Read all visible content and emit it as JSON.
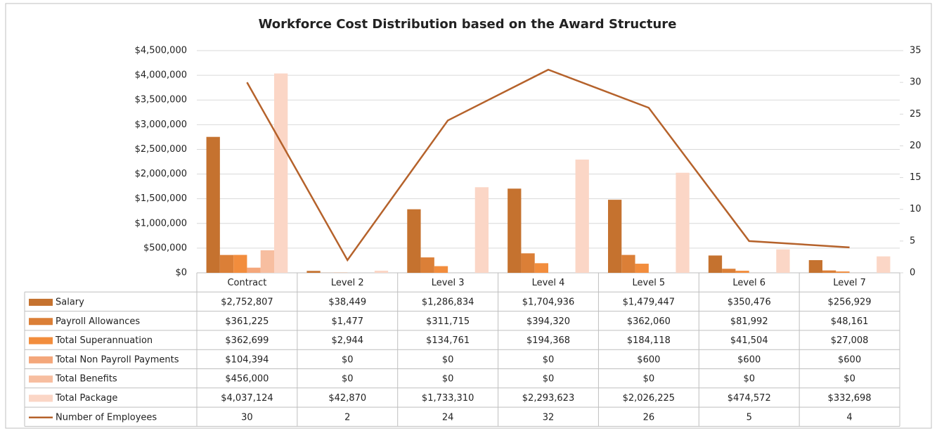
{
  "chart_data": {
    "type": "bar",
    "title": "Workforce Cost Distribution based on the Award Structure",
    "categories": [
      "Contract",
      "Level 2",
      "Level 3",
      "Level 4",
      "Level 5",
      "Level 6",
      "Level 7"
    ],
    "series": [
      {
        "name": "Salary",
        "color": "#c5722f",
        "values": [
          2752807,
          38449,
          1286834,
          1704936,
          1479447,
          350476,
          256929
        ],
        "value_labels": [
          "$2,752,807",
          "$38,449",
          "$1,286,834",
          "$1,704,936",
          "$1,479,447",
          "$350,476",
          "$256,929"
        ]
      },
      {
        "name": "Payroll Allowances",
        "color": "#db7f37",
        "values": [
          361225,
          1477,
          311715,
          394320,
          362060,
          81992,
          48161
        ],
        "value_labels": [
          "$361,225",
          "$1,477",
          "$311,715",
          "$394,320",
          "$362,060",
          "$81,992",
          "$48,161"
        ]
      },
      {
        "name": "Total Superannuation",
        "color": "#f28d3d",
        "values": [
          362699,
          2944,
          134761,
          194368,
          184118,
          41504,
          27008
        ],
        "value_labels": [
          "$362,699",
          "$2,944",
          "$134,761",
          "$194,368",
          "$184,118",
          "$41,504",
          "$27,008"
        ]
      },
      {
        "name": "Total Non Payroll Payments",
        "color": "#f4a77b",
        "values": [
          104394,
          0,
          0,
          0,
          600,
          600,
          600
        ],
        "value_labels": [
          "$104,394",
          "$0",
          "$0",
          "$0",
          "$600",
          "$600",
          "$600"
        ]
      },
      {
        "name": "Total Benefits",
        "color": "#f7bea0",
        "values": [
          456000,
          0,
          0,
          0,
          0,
          0,
          0
        ],
        "value_labels": [
          "$456,000",
          "$0",
          "$0",
          "$0",
          "$0",
          "$0",
          "$0"
        ]
      },
      {
        "name": "Total Package",
        "color": "#fbd6c6",
        "values": [
          4037124,
          42870,
          1733310,
          2293623,
          2026225,
          474572,
          332698
        ],
        "value_labels": [
          "$4,037,124",
          "$42,870",
          "$1,733,310",
          "$2,293,623",
          "$2,026,225",
          "$474,572",
          "$332,698"
        ]
      },
      {
        "name": "Number of Employees",
        "color": "#b5622b",
        "type": "line",
        "axis": "y2",
        "values": [
          30,
          2,
          24,
          32,
          26,
          5,
          4
        ]
      }
    ],
    "ylim": [
      0,
      4500000
    ],
    "yticks": [
      {
        "value": 0,
        "label": "$0"
      },
      {
        "value": 500000,
        "label": "$500,000"
      },
      {
        "value": 1000000,
        "label": "$1,000,000"
      },
      {
        "value": 1500000,
        "label": "$1,500,000"
      },
      {
        "value": 2000000,
        "label": "$2,000,000"
      },
      {
        "value": 2500000,
        "label": "$2,500,000"
      },
      {
        "value": 3000000,
        "label": "$3,000,000"
      },
      {
        "value": 3500000,
        "label": "$3,500,000"
      },
      {
        "value": 4000000,
        "label": "$4,000,000"
      },
      {
        "value": 4500000,
        "label": "$4,500,000"
      }
    ],
    "y2lim": [
      0,
      35
    ],
    "y2ticks": [
      0,
      5,
      10,
      15,
      20,
      25,
      30,
      35
    ],
    "grid": true
  }
}
